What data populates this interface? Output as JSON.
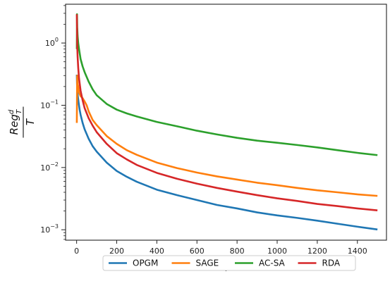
{
  "chart_data": {
    "type": "line",
    "title": "",
    "xlabel": "T",
    "ylabel_parts": {
      "numerator": "Reg",
      "sup": "d",
      "sub": "T",
      "denominator": "T"
    },
    "xlim": [
      -55,
      1545
    ],
    "ylim": [
      0.00068,
      4.2
    ],
    "yscale": "log",
    "grid": false,
    "legend": {
      "placement": "bottom-center-outside",
      "columns": 4
    },
    "xticks": [
      {
        "value": 0,
        "label": "0"
      },
      {
        "value": 200,
        "label": "200"
      },
      {
        "value": 400,
        "label": "400"
      },
      {
        "value": 600,
        "label": "600"
      },
      {
        "value": 800,
        "label": "800"
      },
      {
        "value": 1000,
        "label": "1000"
      },
      {
        "value": 1200,
        "label": "1200"
      },
      {
        "value": 1400,
        "label": "1400"
      }
    ],
    "yticks": [
      {
        "value": 0.001,
        "base": "10",
        "exp": "−3"
      },
      {
        "value": 0.01,
        "base": "10",
        "exp": "−2"
      },
      {
        "value": 0.1,
        "base": "10",
        "exp": "−1"
      },
      {
        "value": 1,
        "base": "10",
        "exp": "0"
      }
    ],
    "series": [
      {
        "name": "OPGM",
        "color": "#1f77b4",
        "points": [
          [
            1,
            0.31
          ],
          [
            2,
            0.22
          ],
          [
            4,
            0.17
          ],
          [
            6,
            0.14
          ],
          [
            10,
            0.11
          ],
          [
            15,
            0.085
          ],
          [
            20,
            0.07
          ],
          [
            30,
            0.052
          ],
          [
            40,
            0.041
          ],
          [
            60,
            0.029
          ],
          [
            80,
            0.022
          ],
          [
            100,
            0.018
          ],
          [
            150,
            0.012
          ],
          [
            200,
            0.0088
          ],
          [
            250,
            0.0071
          ],
          [
            300,
            0.0059
          ],
          [
            400,
            0.0044
          ],
          [
            500,
            0.0036
          ],
          [
            600,
            0.003
          ],
          [
            700,
            0.0025
          ],
          [
            800,
            0.0022
          ],
          [
            900,
            0.0019
          ],
          [
            1000,
            0.0017
          ],
          [
            1100,
            0.00155
          ],
          [
            1200,
            0.0014
          ],
          [
            1300,
            0.00125
          ],
          [
            1400,
            0.00112
          ],
          [
            1500,
            0.00101
          ]
        ]
      },
      {
        "name": "SAGE",
        "color": "#ff7f0e",
        "points": [
          [
            1,
            0.052
          ],
          [
            2,
            0.15
          ],
          [
            3,
            0.3
          ],
          [
            5,
            0.22
          ],
          [
            8,
            0.2
          ],
          [
            12,
            0.16
          ],
          [
            20,
            0.14
          ],
          [
            30,
            0.13
          ],
          [
            40,
            0.115
          ],
          [
            50,
            0.1
          ],
          [
            60,
            0.08
          ],
          [
            80,
            0.058
          ],
          [
            100,
            0.048
          ],
          [
            150,
            0.032
          ],
          [
            200,
            0.024
          ],
          [
            250,
            0.019
          ],
          [
            300,
            0.016
          ],
          [
            400,
            0.012
          ],
          [
            500,
            0.0098
          ],
          [
            600,
            0.0083
          ],
          [
            700,
            0.0072
          ],
          [
            800,
            0.0064
          ],
          [
            900,
            0.0057
          ],
          [
            1000,
            0.0052
          ],
          [
            1100,
            0.0047
          ],
          [
            1200,
            0.0043
          ],
          [
            1300,
            0.004
          ],
          [
            1400,
            0.0037
          ],
          [
            1500,
            0.0035
          ]
        ]
      },
      {
        "name": "AC-SA",
        "color": "#2ca02c",
        "points": [
          [
            1,
            0.8
          ],
          [
            2,
            2.9
          ],
          [
            3,
            1.8
          ],
          [
            5,
            1.3
          ],
          [
            8,
            1.0
          ],
          [
            12,
            0.8
          ],
          [
            20,
            0.55
          ],
          [
            30,
            0.42
          ],
          [
            40,
            0.34
          ],
          [
            60,
            0.24
          ],
          [
            80,
            0.18
          ],
          [
            100,
            0.145
          ],
          [
            150,
            0.105
          ],
          [
            200,
            0.085
          ],
          [
            250,
            0.074
          ],
          [
            300,
            0.066
          ],
          [
            400,
            0.054
          ],
          [
            500,
            0.046
          ],
          [
            600,
            0.039
          ],
          [
            700,
            0.034
          ],
          [
            800,
            0.03
          ],
          [
            900,
            0.027
          ],
          [
            1000,
            0.025
          ],
          [
            1100,
            0.023
          ],
          [
            1200,
            0.021
          ],
          [
            1300,
            0.019
          ],
          [
            1400,
            0.0172
          ],
          [
            1500,
            0.0158
          ]
        ]
      },
      {
        "name": "RDA",
        "color": "#d62728",
        "points": [
          [
            1,
            2.9
          ],
          [
            2,
            1.8
          ],
          [
            3,
            0.9
          ],
          [
            5,
            0.6
          ],
          [
            8,
            0.4
          ],
          [
            12,
            0.27
          ],
          [
            20,
            0.17
          ],
          [
            30,
            0.12
          ],
          [
            40,
            0.09
          ],
          [
            60,
            0.062
          ],
          [
            80,
            0.047
          ],
          [
            100,
            0.037
          ],
          [
            150,
            0.024
          ],
          [
            200,
            0.017
          ],
          [
            250,
            0.0135
          ],
          [
            300,
            0.011
          ],
          [
            400,
            0.0082
          ],
          [
            500,
            0.0066
          ],
          [
            600,
            0.0055
          ],
          [
            700,
            0.0047
          ],
          [
            800,
            0.0041
          ],
          [
            900,
            0.0036
          ],
          [
            1000,
            0.0032
          ],
          [
            1100,
            0.0029
          ],
          [
            1200,
            0.0026
          ],
          [
            1300,
            0.0024
          ],
          [
            1400,
            0.0022
          ],
          [
            1500,
            0.00205
          ]
        ]
      }
    ]
  }
}
